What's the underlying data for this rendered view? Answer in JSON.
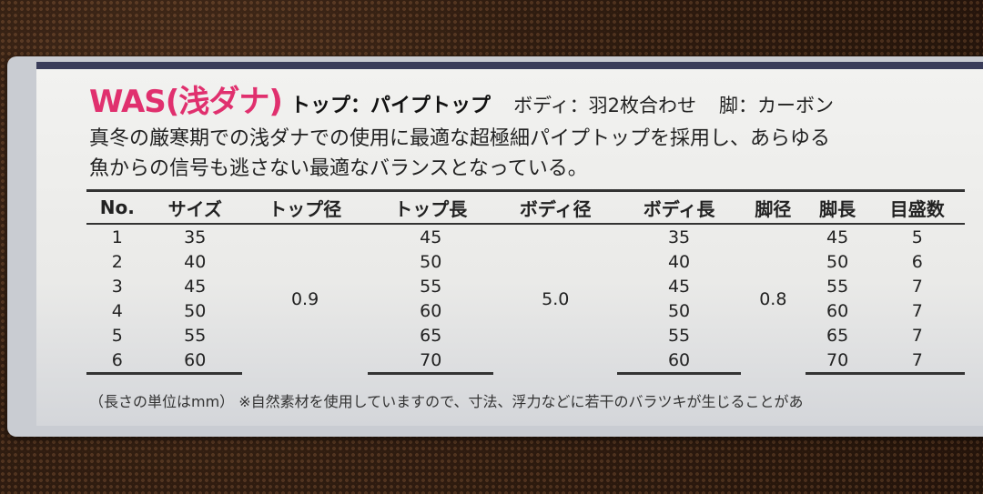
{
  "label": {
    "brand": "WAS(浅ダナ)",
    "top_spec": "トップ：パイプトップ",
    "body_spec": "ボディ：羽2枚合わせ",
    "leg_spec": "脚：カーボン",
    "description_lines": [
      "真冬の厳寒期での浅ダナでの使用に最適な超極細パイプトップを採用し、あらゆる",
      "魚からの信号も逃さない最適なバランスとなっている。"
    ],
    "table": {
      "headers": [
        "No.",
        "サイズ",
        "トップ径",
        "トップ長",
        "ボディ径",
        "ボディ長",
        "脚径",
        "脚長",
        "目盛数"
      ],
      "rows": [
        [
          "1",
          "35",
          "",
          "45",
          "",
          "35",
          "",
          "45",
          "5"
        ],
        [
          "2",
          "40",
          "",
          "50",
          "",
          "40",
          "",
          "50",
          "6"
        ],
        [
          "3",
          "45",
          "",
          "55",
          "",
          "45",
          "",
          "55",
          "7"
        ],
        [
          "4",
          "50",
          "",
          "60",
          "",
          "50",
          "",
          "60",
          "7"
        ],
        [
          "5",
          "55",
          "",
          "65",
          "",
          "55",
          "",
          "65",
          "7"
        ],
        [
          "6",
          "60",
          "",
          "70",
          "",
          "60",
          "",
          "70",
          "7"
        ]
      ],
      "merged": {
        "top_diameter": "0.9",
        "body_diameter": "5.0",
        "leg_diameter": "0.8"
      }
    },
    "footnote": "（長さの単位はmm）  ※自然素材を使用していますので、寸法、浮力などに若干のバラツキが生じることがあ",
    "colors": {
      "brand": "#e0306e",
      "background": "#3b2415"
    }
  }
}
